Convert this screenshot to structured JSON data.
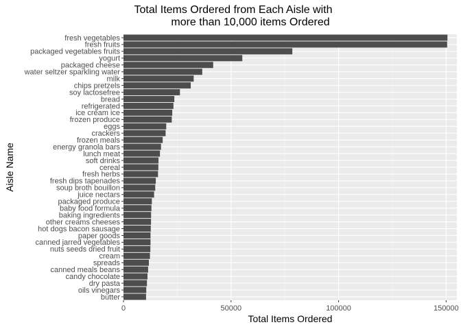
{
  "chart_data": {
    "type": "bar",
    "orientation": "horizontal",
    "title": "Total Items Ordered from Each Aisle with more than 10,000 items Ordered",
    "title_lines": [
      "Total Items Ordered from Each Aisle with",
      "more than 10,000 items Ordered"
    ],
    "xlabel": "Total Items Ordered",
    "ylabel": "Aisle Name",
    "xlim": [
      0,
      155000
    ],
    "xticks": [
      0,
      50000,
      100000,
      150000
    ],
    "xtick_labels": [
      "0",
      "50000",
      "100000",
      "150000"
    ],
    "grid": true,
    "bar_color": "#4d4d4d",
    "panel_color": "#ebebeb",
    "categories": [
      "fresh vegetables",
      "fresh fruits",
      "packaged vegetables fruits",
      "yogurt",
      "packaged cheese",
      "water seltzer sparkling water",
      "milk",
      "chips pretzels",
      "soy lactosefree",
      "bread",
      "refrigerated",
      "ice cream ice",
      "frozen produce",
      "eggs",
      "crackers",
      "frozen meals",
      "energy granola bars",
      "lunch meat",
      "soft drinks",
      "cereal",
      "fresh herbs",
      "fresh dips tapenades",
      "soup broth bouillon",
      "juice nectars",
      "packaged produce",
      "baby food formula",
      "baking ingredients",
      "other creams cheeses",
      "hot dogs bacon sausage",
      "paper goods",
      "canned jarred vegetables",
      "nuts seeds dried fruit",
      "cream",
      "spreads",
      "canned meals beans",
      "candy chocolate",
      "dry pasta",
      "oils vinegars",
      "butter"
    ],
    "values": [
      150609,
      150473,
      78493,
      55240,
      41699,
      36617,
      32644,
      31269,
      26240,
      23635,
      23228,
      22676,
      22453,
      19875,
      19592,
      18221,
      17449,
      16957,
      16279,
      16201,
      16052,
      15014,
      14756,
      14233,
      13180,
      12986,
      12832,
      12800,
      12691,
      12577,
      12573,
      12500,
      12300,
      11800,
      11450,
      11160,
      10900,
      10600,
      10500
    ]
  }
}
